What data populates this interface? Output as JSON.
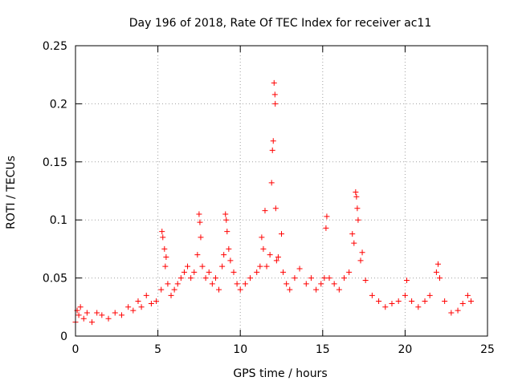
{
  "chart_data": {
    "type": "scatter",
    "title": "Day 196 of 2018, Rate Of TEC Index for receiver ac11",
    "xlabel": "GPS time / hours",
    "ylabel": "ROTI / TECUs",
    "xlim": [
      0,
      25
    ],
    "ylim": [
      0,
      0.25
    ],
    "xticks": [
      0,
      5,
      10,
      15,
      20,
      25
    ],
    "xtick_labels": [
      "0",
      "5",
      "10",
      "15",
      "20",
      "25"
    ],
    "yticks": [
      0,
      0.05,
      0.1,
      0.15,
      0.2,
      0.25
    ],
    "ytick_labels": [
      "0",
      "0.05",
      "0.1",
      "0.15",
      "0.2",
      "0.25"
    ],
    "grid": true,
    "marker": "+",
    "series": [
      {
        "name": "ROTI",
        "color": "#ff0000",
        "points": [
          [
            0.0,
            0.012
          ],
          [
            0.1,
            0.022
          ],
          [
            0.2,
            0.018
          ],
          [
            0.3,
            0.025
          ],
          [
            0.5,
            0.015
          ],
          [
            0.7,
            0.02
          ],
          [
            1.0,
            0.012
          ],
          [
            1.3,
            0.02
          ],
          [
            1.6,
            0.018
          ],
          [
            2.0,
            0.015
          ],
          [
            2.4,
            0.02
          ],
          [
            2.8,
            0.018
          ],
          [
            3.2,
            0.025
          ],
          [
            3.5,
            0.022
          ],
          [
            3.8,
            0.03
          ],
          [
            4.0,
            0.025
          ],
          [
            4.3,
            0.035
          ],
          [
            4.6,
            0.028
          ],
          [
            4.9,
            0.03
          ],
          [
            5.2,
            0.04
          ],
          [
            5.25,
            0.09
          ],
          [
            5.3,
            0.085
          ],
          [
            5.4,
            0.075
          ],
          [
            5.45,
            0.06
          ],
          [
            5.5,
            0.068
          ],
          [
            5.6,
            0.045
          ],
          [
            5.8,
            0.035
          ],
          [
            6.0,
            0.04
          ],
          [
            6.2,
            0.045
          ],
          [
            6.4,
            0.05
          ],
          [
            6.6,
            0.055
          ],
          [
            6.8,
            0.06
          ],
          [
            7.0,
            0.05
          ],
          [
            7.2,
            0.055
          ],
          [
            7.4,
            0.07
          ],
          [
            7.5,
            0.105
          ],
          [
            7.55,
            0.098
          ],
          [
            7.6,
            0.085
          ],
          [
            7.7,
            0.06
          ],
          [
            7.9,
            0.05
          ],
          [
            8.1,
            0.055
          ],
          [
            8.3,
            0.045
          ],
          [
            8.5,
            0.05
          ],
          [
            8.7,
            0.04
          ],
          [
            8.9,
            0.06
          ],
          [
            9.0,
            0.07
          ],
          [
            9.1,
            0.105
          ],
          [
            9.15,
            0.1
          ],
          [
            9.2,
            0.09
          ],
          [
            9.3,
            0.075
          ],
          [
            9.4,
            0.065
          ],
          [
            9.6,
            0.055
          ],
          [
            9.8,
            0.045
          ],
          [
            10.0,
            0.04
          ],
          [
            10.3,
            0.045
          ],
          [
            10.6,
            0.05
          ],
          [
            11.0,
            0.055
          ],
          [
            11.2,
            0.06
          ],
          [
            11.3,
            0.085
          ],
          [
            11.4,
            0.075
          ],
          [
            11.5,
            0.108
          ],
          [
            11.6,
            0.06
          ],
          [
            11.8,
            0.07
          ],
          [
            11.9,
            0.132
          ],
          [
            11.95,
            0.16
          ],
          [
            12.0,
            0.168
          ],
          [
            12.05,
            0.218
          ],
          [
            12.1,
            0.208
          ],
          [
            12.12,
            0.2
          ],
          [
            12.15,
            0.11
          ],
          [
            12.2,
            0.065
          ],
          [
            12.3,
            0.068
          ],
          [
            12.5,
            0.088
          ],
          [
            12.6,
            0.055
          ],
          [
            12.8,
            0.045
          ],
          [
            13.0,
            0.04
          ],
          [
            13.3,
            0.05
          ],
          [
            13.6,
            0.058
          ],
          [
            14.0,
            0.045
          ],
          [
            14.3,
            0.05
          ],
          [
            14.6,
            0.04
          ],
          [
            14.9,
            0.045
          ],
          [
            15.1,
            0.05
          ],
          [
            15.2,
            0.093
          ],
          [
            15.25,
            0.103
          ],
          [
            15.4,
            0.05
          ],
          [
            15.7,
            0.045
          ],
          [
            16.0,
            0.04
          ],
          [
            16.3,
            0.05
          ],
          [
            16.6,
            0.055
          ],
          [
            16.8,
            0.088
          ],
          [
            16.9,
            0.08
          ],
          [
            17.0,
            0.124
          ],
          [
            17.05,
            0.12
          ],
          [
            17.1,
            0.11
          ],
          [
            17.15,
            0.1
          ],
          [
            17.3,
            0.065
          ],
          [
            17.4,
            0.072
          ],
          [
            17.6,
            0.048
          ],
          [
            18.0,
            0.035
          ],
          [
            18.4,
            0.03
          ],
          [
            18.8,
            0.025
          ],
          [
            19.2,
            0.028
          ],
          [
            19.6,
            0.03
          ],
          [
            20.0,
            0.035
          ],
          [
            20.1,
            0.048
          ],
          [
            20.4,
            0.03
          ],
          [
            20.8,
            0.025
          ],
          [
            21.2,
            0.03
          ],
          [
            21.5,
            0.035
          ],
          [
            21.9,
            0.055
          ],
          [
            22.0,
            0.062
          ],
          [
            22.1,
            0.05
          ],
          [
            22.4,
            0.03
          ],
          [
            22.8,
            0.02
          ],
          [
            23.2,
            0.022
          ],
          [
            23.5,
            0.028
          ],
          [
            23.8,
            0.035
          ],
          [
            24.0,
            0.03
          ]
        ]
      }
    ]
  }
}
